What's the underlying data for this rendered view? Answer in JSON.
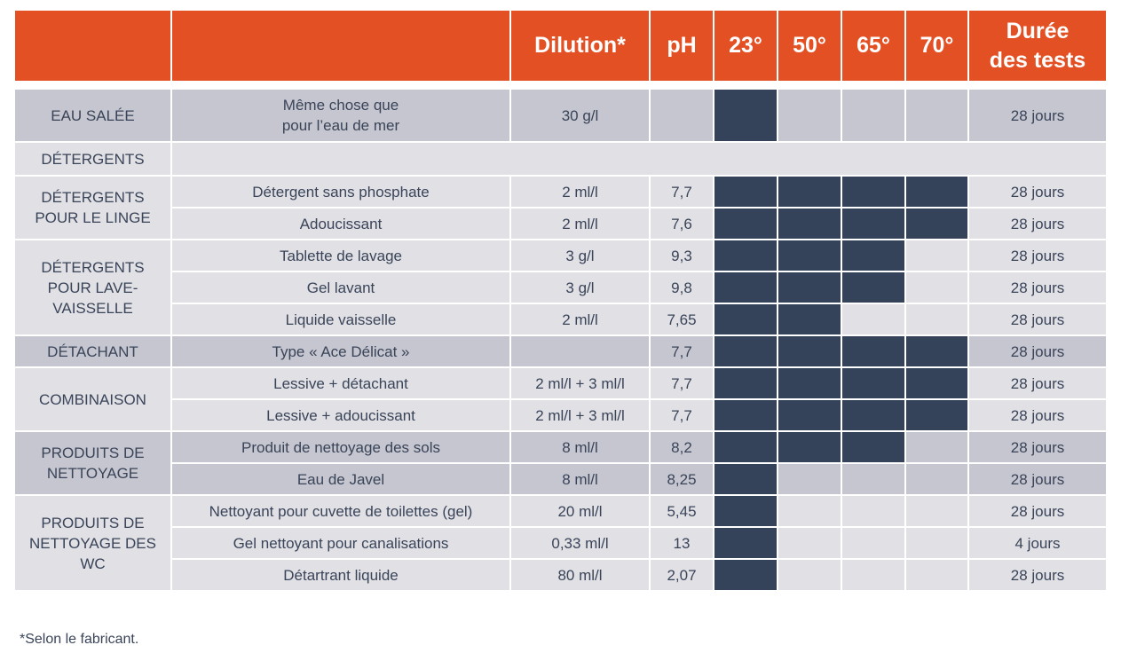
{
  "header": {
    "columns": [
      "",
      "",
      "Dilution*",
      "pH",
      "23°",
      "50°",
      "65°",
      "70°",
      "Durée des tests"
    ]
  },
  "colors": {
    "header": "#e25024",
    "tested": "#344359",
    "row_dark": "#c5c6cf",
    "row_light": "#e0e0e5"
  },
  "groups": [
    {
      "category": "EAU SALÉE",
      "shade": "dark",
      "items": [
        {
          "product": "Même chose que pour l’eau de mer",
          "dilution": "30 g/l",
          "ph": "",
          "temps": [
            true,
            false,
            false,
            false
          ],
          "duration": "28 jours"
        }
      ]
    },
    {
      "category": "DÉTERGENTS",
      "shade": "light",
      "section_only": true,
      "items": []
    },
    {
      "category": "DÉTERGENTS POUR LE LINGE",
      "shade": "light",
      "items": [
        {
          "product": "Détergent sans phosphate",
          "dilution": "2 ml/l",
          "ph": "7,7",
          "temps": [
            true,
            true,
            true,
            true
          ],
          "duration": "28 jours"
        },
        {
          "product": "Adoucissant",
          "dilution": "2 ml/l",
          "ph": "7,6",
          "temps": [
            true,
            true,
            true,
            true
          ],
          "duration": "28 jours"
        }
      ]
    },
    {
      "category": "DÉTERGENTS POUR LAVE-VAISSELLE",
      "shade": "light",
      "items": [
        {
          "product": "Tablette de lavage",
          "dilution": "3 g/l",
          "ph": "9,3",
          "temps": [
            true,
            true,
            true,
            false
          ],
          "duration": "28 jours"
        },
        {
          "product": "Gel lavant",
          "dilution": "3 g/l",
          "ph": "9,8",
          "temps": [
            true,
            true,
            true,
            false
          ],
          "duration": "28 jours"
        },
        {
          "product": "Liquide vaisselle",
          "dilution": "2 ml/l",
          "ph": "7,65",
          "temps": [
            true,
            true,
            false,
            false
          ],
          "duration": "28 jours"
        }
      ]
    },
    {
      "category": "DÉTACHANT",
      "shade": "dark",
      "items": [
        {
          "product": "Type « Ace Délicat »",
          "dilution": "",
          "ph": "7,7",
          "temps": [
            true,
            true,
            true,
            true
          ],
          "duration": "28 jours"
        }
      ]
    },
    {
      "category": "COMBINAISON",
      "shade": "light",
      "items": [
        {
          "product": "Lessive + détachant",
          "dilution": "2 ml/l + 3 ml/l",
          "ph": "7,7",
          "temps": [
            true,
            true,
            true,
            true
          ],
          "duration": "28 jours"
        },
        {
          "product": "Lessive + adoucissant",
          "dilution": "2 ml/l + 3 ml/l",
          "ph": "7,7",
          "temps": [
            true,
            true,
            true,
            true
          ],
          "duration": "28 jours"
        }
      ]
    },
    {
      "category": "PRODUITS DE NETTOYAGE",
      "shade": "dark",
      "items": [
        {
          "product": "Produit de nettoyage des sols",
          "dilution": "8 ml/l",
          "ph": "8,2",
          "temps": [
            true,
            true,
            true,
            false
          ],
          "duration": "28 jours"
        },
        {
          "product": "Eau de Javel",
          "dilution": "8 ml/l",
          "ph": "8,25",
          "temps": [
            true,
            false,
            false,
            false
          ],
          "duration": "28 jours"
        }
      ]
    },
    {
      "category": "PRODUITS DE NETTOYAGE DES WC",
      "shade": "light",
      "items": [
        {
          "product": "Nettoyant pour cuvette de toilettes (gel)",
          "dilution": "20 ml/l",
          "ph": "5,45",
          "temps": [
            true,
            false,
            false,
            false
          ],
          "duration": "28 jours"
        },
        {
          "product": "Gel nettoyant pour canalisations",
          "dilution": "0,33 ml/l",
          "ph": "13",
          "temps": [
            true,
            false,
            false,
            false
          ],
          "duration": "4 jours"
        },
        {
          "product": "Détartrant liquide",
          "dilution": "80 ml/l",
          "ph": "2,07",
          "temps": [
            true,
            false,
            false,
            false
          ],
          "duration": "28 jours"
        }
      ]
    }
  ],
  "footnote": "*Selon le fabricant."
}
